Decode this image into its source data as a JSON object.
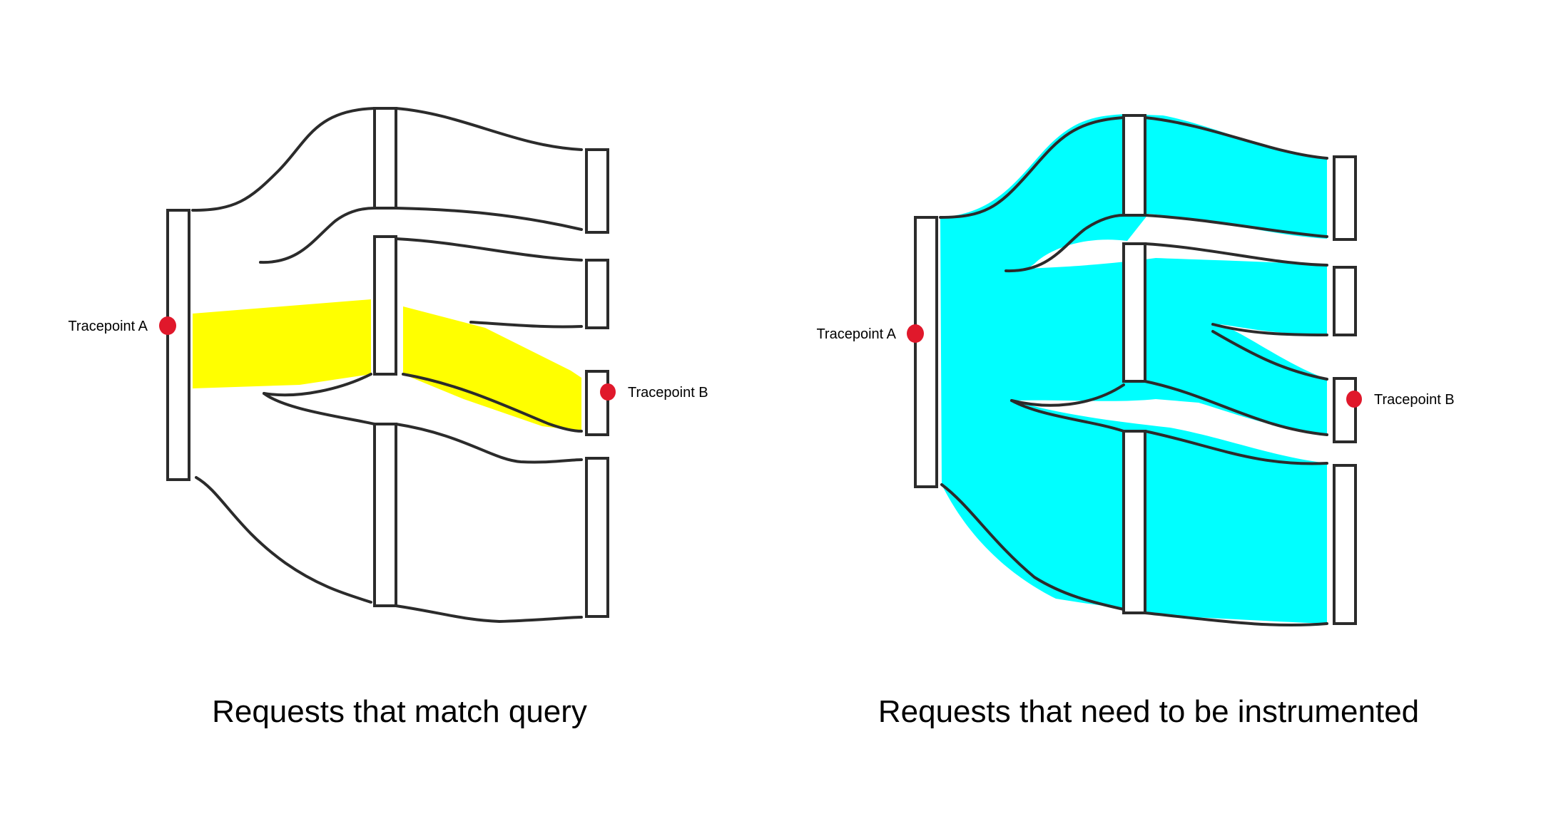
{
  "diagrams": [
    {
      "caption": "Requests that match query",
      "tracepoint_a_label": "Tracepoint A",
      "tracepoint_b_label": "Tracepoint B",
      "highlight_color": "#ffff00"
    },
    {
      "caption": "Requests that need to be instrumented",
      "tracepoint_a_label": "Tracepoint A",
      "tracepoint_b_label": "Tracepoint B",
      "highlight_color": "#00ffff"
    }
  ],
  "colors": {
    "tracepoint_dot": "#e0182b",
    "ink": "#2b2b2b"
  }
}
